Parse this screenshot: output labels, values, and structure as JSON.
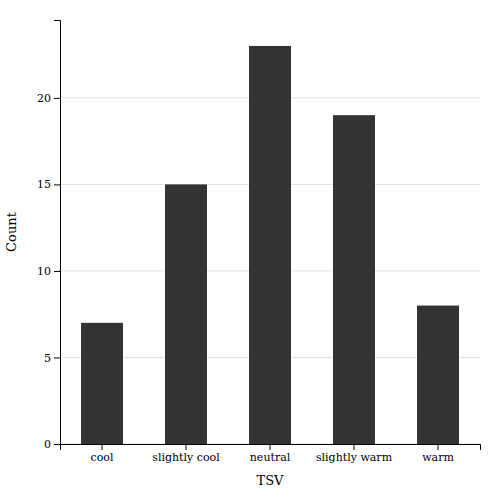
{
  "chart_data": {
    "type": "bar",
    "categories": [
      "cool",
      "slightly cool",
      "neutral",
      "slightly warm",
      "warm"
    ],
    "values": [
      7,
      15,
      23,
      19,
      8
    ],
    "color": "#333333",
    "xlabel": "TSV",
    "ylabel": "Count",
    "ylim": [
      0,
      24.5
    ],
    "yticks": [
      0,
      5,
      10,
      15,
      20
    ],
    "grid": true
  }
}
